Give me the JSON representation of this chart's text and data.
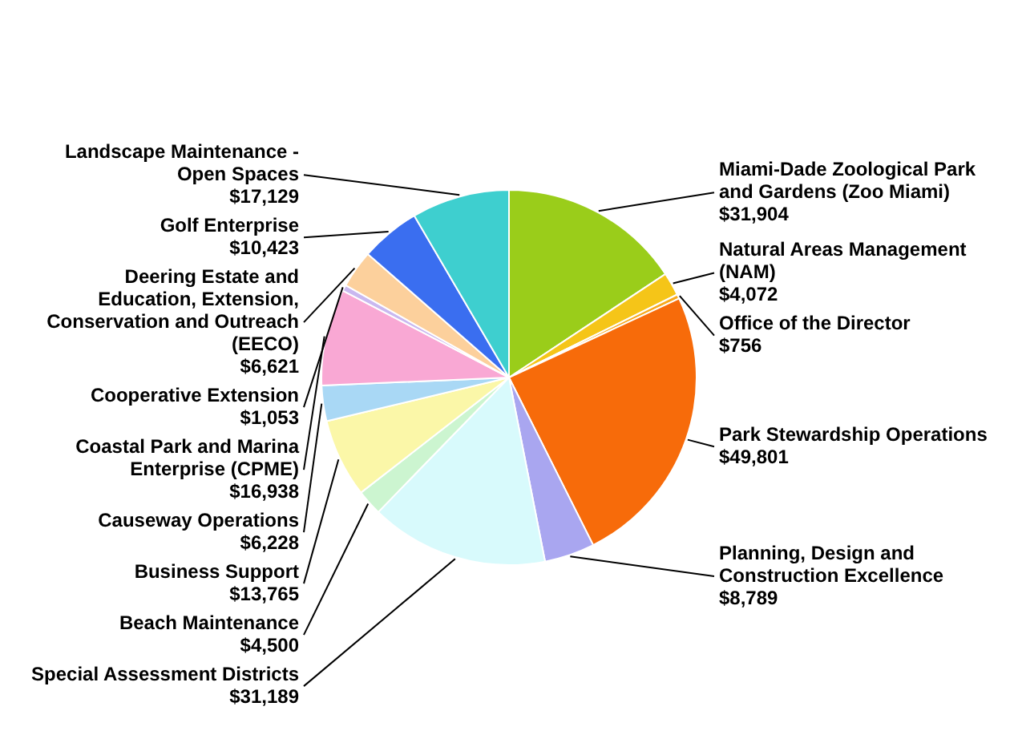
{
  "chart_data": {
    "type": "pie",
    "categories": [
      "Miami-Dade Zoological Park and Gardens (Zoo Miami)",
      "Natural Areas Management (NAM)",
      "Office of the Director",
      "Park Stewardship Operations",
      "Planning, Design and Construction Excellence",
      "Special Assessment Districts",
      "Beach Maintenance",
      "Business Support",
      "Causeway Operations",
      "Coastal Park and Marina Enterprise (CPME)",
      "Cooperative Extension",
      "Deering Estate and Education, Extension, Conservation and Outreach (EECO)",
      "Golf Enterprise",
      "Landscape Maintenance - Open Spaces"
    ],
    "values": [
      31904,
      4072,
      756,
      49801,
      8789,
      31189,
      4500,
      13765,
      6228,
      16938,
      1053,
      6621,
      10423,
      17129
    ],
    "value_labels": [
      "$31,904",
      "$4,072",
      "$756",
      "$49,801",
      "$8,789",
      "$31,189",
      "$4,500",
      "$13,765",
      "$6,228",
      "$16,938",
      "$1,053",
      "$6,621",
      "$10,423",
      "$17,129"
    ],
    "colors": [
      "#9acd1a",
      "#f5c518",
      "#f7a81b",
      "#f76b0a",
      "#a9a6f0",
      "#d8fafc",
      "#ccf5d0",
      "#fbf7a8",
      "#a9d8f5",
      "#f9a8d4",
      "#c9b8f0",
      "#fcd09c",
      "#3a6ef0",
      "#3ecfcf"
    ]
  }
}
